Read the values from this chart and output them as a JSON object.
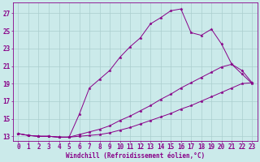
{
  "xlabel": "Windchill (Refroidissement éolien,°C)",
  "background_color": "#cbeaea",
  "grid_color": "#aacece",
  "line_color": "#880088",
  "xlim": [
    -0.5,
    23.5
  ],
  "ylim": [
    12.5,
    28.2
  ],
  "xticks": [
    0,
    1,
    2,
    3,
    4,
    5,
    6,
    7,
    8,
    9,
    10,
    11,
    12,
    13,
    14,
    15,
    16,
    17,
    18,
    19,
    20,
    21,
    22,
    23
  ],
  "yticks": [
    13,
    15,
    17,
    19,
    21,
    23,
    25,
    27
  ],
  "series": [
    [
      13.3,
      13.1,
      13.0,
      13.0,
      12.9,
      12.9,
      15.5,
      18.5,
      19.5,
      20.5,
      22.0,
      23.2,
      24.2,
      25.8,
      26.5,
      27.3,
      27.5,
      24.8,
      24.5,
      25.2,
      23.5,
      21.2,
      20.1,
      19.0
    ],
    [
      13.3,
      13.1,
      13.0,
      13.0,
      12.9,
      12.9,
      13.2,
      13.5,
      13.8,
      14.2,
      14.8,
      15.3,
      15.9,
      16.5,
      17.2,
      17.8,
      18.5,
      19.1,
      19.7,
      20.3,
      20.9,
      21.2,
      20.5,
      19.1
    ],
    [
      13.3,
      13.1,
      13.0,
      13.0,
      12.9,
      12.9,
      13.0,
      13.1,
      13.2,
      13.4,
      13.7,
      14.0,
      14.4,
      14.8,
      15.2,
      15.6,
      16.1,
      16.5,
      17.0,
      17.5,
      18.0,
      18.5,
      19.0,
      19.1
    ]
  ],
  "tick_fontsize": 5.5,
  "label_fontsize": 5.5
}
